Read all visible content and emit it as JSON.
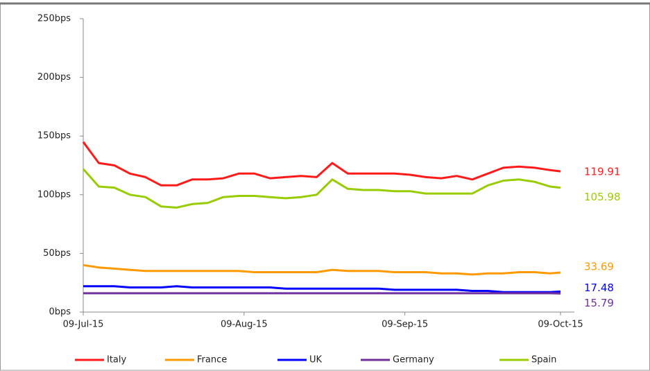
{
  "chart_data": {
    "type": "line",
    "x": [
      "2015-07-09",
      "2015-07-12",
      "2015-07-15",
      "2015-07-18",
      "2015-07-21",
      "2015-07-24",
      "2015-07-27",
      "2015-07-30",
      "2015-08-02",
      "2015-08-05",
      "2015-08-08",
      "2015-08-11",
      "2015-08-14",
      "2015-08-17",
      "2015-08-20",
      "2015-08-23",
      "2015-08-26",
      "2015-08-29",
      "2015-09-01",
      "2015-09-04",
      "2015-09-07",
      "2015-09-10",
      "2015-09-13",
      "2015-09-16",
      "2015-09-19",
      "2015-09-22",
      "2015-09-25",
      "2015-09-28",
      "2015-10-01",
      "2015-10-04",
      "2015-10-07",
      "2015-10-09"
    ],
    "series": [
      {
        "name": "Italy",
        "color": "#ff1a1a",
        "values": [
          145,
          127,
          125,
          118,
          115,
          108,
          108,
          113,
          113,
          114,
          118,
          118,
          114,
          115,
          116,
          115,
          127,
          118,
          118,
          118,
          118,
          117,
          115,
          114,
          116,
          113,
          118,
          123,
          124,
          123,
          121,
          119.91
        ]
      },
      {
        "name": "France",
        "color": "#ff9900",
        "values": [
          40,
          38,
          37,
          36,
          35,
          35,
          35,
          35,
          35,
          35,
          35,
          34,
          34,
          34,
          34,
          34,
          36,
          35,
          35,
          35,
          34,
          34,
          34,
          33,
          33,
          32,
          33,
          33,
          34,
          34,
          33,
          33.69
        ]
      },
      {
        "name": "UK",
        "color": "#0000ff",
        "values": [
          22,
          22,
          22,
          21,
          21,
          21,
          22,
          21,
          21,
          21,
          21,
          21,
          21,
          20,
          20,
          20,
          20,
          20,
          20,
          20,
          19,
          19,
          19,
          19,
          19,
          18,
          18,
          17,
          17,
          17,
          17,
          17.48
        ]
      },
      {
        "name": "Germany",
        "color": "#7030a0",
        "values": [
          16,
          16,
          16,
          16,
          16,
          16,
          16,
          16,
          16,
          16,
          16,
          16,
          16,
          16,
          16,
          16,
          16,
          16,
          16,
          16,
          16,
          16,
          16,
          16,
          16,
          16,
          16,
          16,
          16,
          16,
          16,
          15.79
        ]
      },
      {
        "name": "Spain",
        "color": "#99cc00",
        "values": [
          122,
          107,
          106,
          100,
          98,
          90,
          89,
          92,
          93,
          98,
          99,
          99,
          98,
          97,
          98,
          100,
          113,
          105,
          104,
          104,
          103,
          103,
          101,
          101,
          101,
          101,
          108,
          112,
          113,
          111,
          107,
          105.98
        ]
      }
    ],
    "xlim": [
      "2015-07-09",
      "2015-10-09"
    ],
    "xticks": [
      {
        "value": "2015-07-09",
        "label": "09-Jul-15"
      },
      {
        "value": "2015-08-09",
        "label": "09-Aug-15"
      },
      {
        "value": "2015-09-09",
        "label": "09-Sep-15"
      },
      {
        "value": "2015-10-09",
        "label": "09-Oct-15"
      }
    ],
    "ylim": [
      0,
      250
    ],
    "yticks": [
      {
        "value": 0,
        "label": "0bps"
      },
      {
        "value": 50,
        "label": "50bps"
      },
      {
        "value": 100,
        "label": "100bps"
      },
      {
        "value": 150,
        "label": "150bps"
      },
      {
        "value": 200,
        "label": "200bps"
      },
      {
        "value": 250,
        "label": "250bps"
      }
    ],
    "legend": "bottom"
  }
}
